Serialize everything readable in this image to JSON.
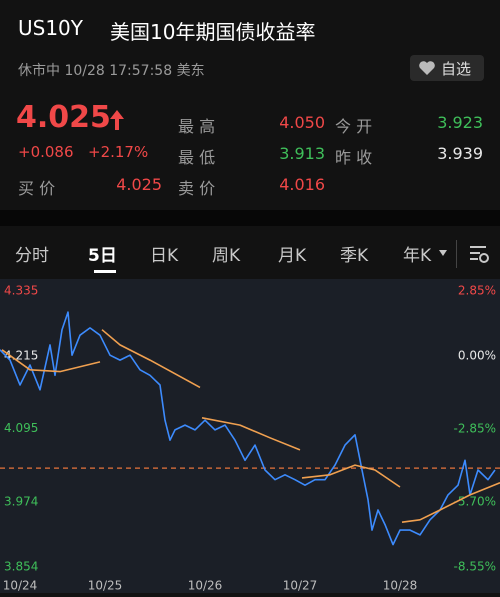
{
  "header": {
    "symbol": "US10Y",
    "name": "美国10年期国债收益率",
    "status": "休市中 10/28 17:57:58 美东",
    "watch_button": "自选"
  },
  "quote": {
    "price": "4.025",
    "price_color": "#f04848",
    "change": "+0.086",
    "change_pct": "+2.17%",
    "bid": {
      "label": "买 价",
      "value": "4.025",
      "color": "#f04848"
    },
    "stats": [
      {
        "label": "最 高",
        "value": "4.050",
        "color": "#f04848"
      },
      {
        "label": "今 开",
        "value": "3.923",
        "color": "#3fbf5a"
      },
      {
        "label": "最 低",
        "value": "3.913",
        "color": "#3fbf5a"
      },
      {
        "label": "昨 收",
        "value": "3.939",
        "color": "#e8e8e8"
      },
      {
        "label": "卖 价",
        "value": "4.016",
        "color": "#f04848"
      }
    ]
  },
  "tabs": [
    "分时",
    "5日",
    "日K",
    "周K",
    "月K",
    "季K",
    "年K"
  ],
  "active_tab": 1,
  "chart_data": {
    "type": "line",
    "xlim": [
      0,
      5
    ],
    "xticks": [
      {
        "value": 0.2,
        "label": "10/24"
      },
      {
        "value": 1.05,
        "label": "10/25"
      },
      {
        "value": 2.05,
        "label": "10/26"
      },
      {
        "value": 3.0,
        "label": "10/27"
      },
      {
        "value": 4.0,
        "label": "10/28"
      }
    ],
    "ylim": [
      3.854,
      4.335
    ],
    "yticks": [
      4.335,
      4.215,
      4.095,
      3.974,
      3.854
    ],
    "y2lim": [
      -8.55,
      2.85
    ],
    "y2ticks": [
      {
        "value": 2.85,
        "label": "2.85%"
      },
      {
        "value": 0,
        "label": "0.00%"
      },
      {
        "value": -2.85,
        "label": "-2.85%"
      },
      {
        "value": -5.7,
        "label": "-5.70%"
      },
      {
        "value": -8.55,
        "label": "-8.55%"
      }
    ],
    "grid": false,
    "ref_line": 4.03,
    "ref_color": "#e8743b",
    "series": [
      {
        "color": "#3d8bfd",
        "x": [
          0,
          0.1,
          0.2,
          0.3,
          0.4,
          0.5,
          0.55,
          0.62,
          0.68,
          0.72,
          0.8,
          0.9,
          1.0,
          1.1,
          1.2,
          1.3,
          1.4,
          1.5,
          1.6,
          1.65,
          1.7,
          1.75,
          1.85,
          1.95,
          2.05,
          2.15,
          2.25,
          2.35,
          2.45,
          2.55,
          2.65,
          2.75,
          2.85,
          2.95,
          3.05,
          3.15,
          3.25,
          3.35,
          3.45,
          3.55,
          3.62,
          3.68,
          3.72,
          3.78,
          3.85,
          3.93,
          4.0,
          4.1,
          4.2,
          4.3,
          4.4,
          4.48,
          4.58,
          4.65,
          4.7,
          4.78,
          4.88,
          4.95
        ],
        "values": [
          4.225,
          4.208,
          4.167,
          4.2,
          4.159,
          4.233,
          4.183,
          4.258,
          4.287,
          4.216,
          4.249,
          4.261,
          4.249,
          4.216,
          4.208,
          4.216,
          4.192,
          4.183,
          4.167,
          4.109,
          4.076,
          4.093,
          4.101,
          4.093,
          4.109,
          4.093,
          4.101,
          4.076,
          4.043,
          4.068,
          4.027,
          4.011,
          4.019,
          4.011,
          4.002,
          4.011,
          4.011,
          4.035,
          4.068,
          4.085,
          4.027,
          3.978,
          3.928,
          3.961,
          3.937,
          3.904,
          3.928,
          3.928,
          3.92,
          3.945,
          3.961,
          3.986,
          4.002,
          4.043,
          3.986,
          4.027,
          4.011,
          4.027
        ]
      },
      {
        "color": "#f0a050",
        "x": [
          0.02,
          0.3,
          0.6,
          1.0,
          1.01,
          1.02,
          1.2,
          1.5,
          2.0,
          2.01,
          2.02,
          2.4,
          2.7,
          3.0,
          3.01,
          3.02,
          3.3,
          3.55,
          3.75,
          4.0,
          4.01,
          4.02,
          4.2,
          4.4,
          4.7,
          5.0
        ],
        "values": [
          4.225,
          4.192,
          4.189,
          4.205,
          null,
          4.258,
          4.233,
          4.208,
          4.163,
          null,
          4.113,
          4.101,
          4.08,
          4.06,
          null,
          4.014,
          4.019,
          4.035,
          4.027,
          3.999,
          null,
          3.941,
          3.945,
          3.961,
          3.986,
          4.006
        ]
      }
    ]
  }
}
